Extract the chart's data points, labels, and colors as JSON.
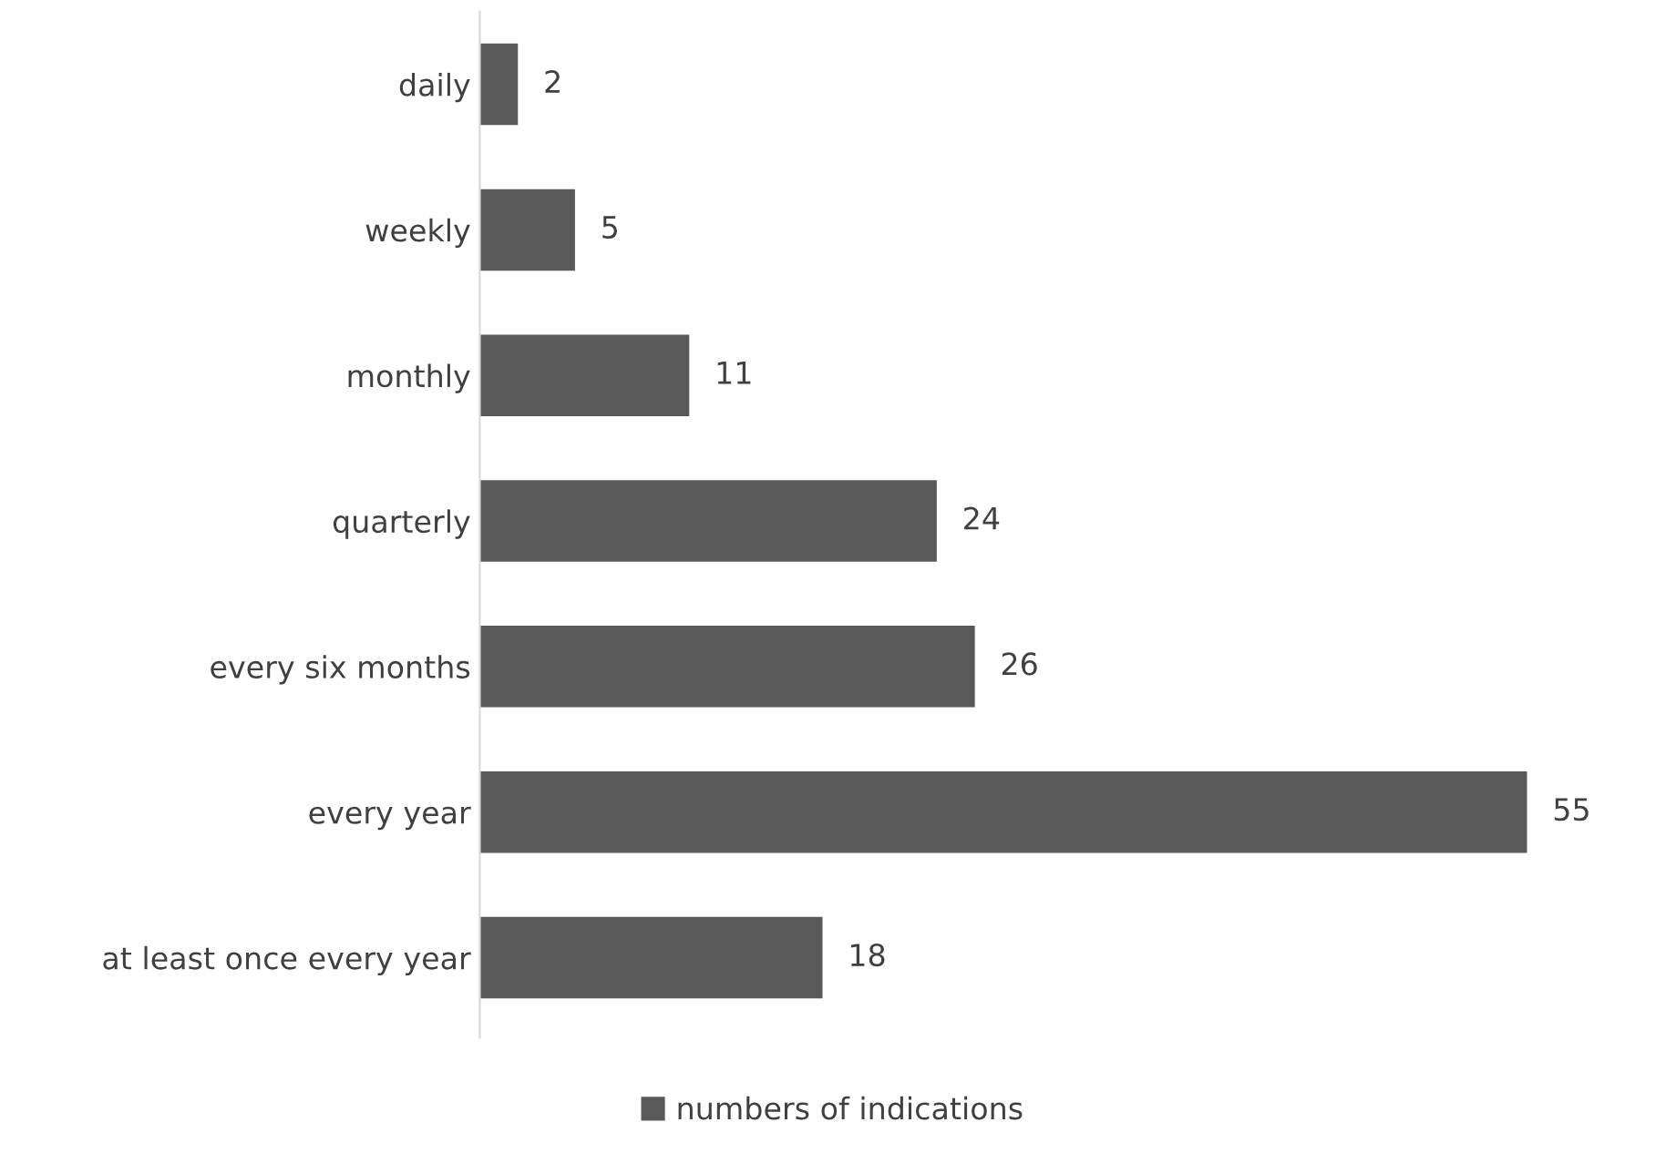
{
  "chart_data": {
    "type": "bar",
    "orientation": "horizontal",
    "categories": [
      "daily",
      "weekly",
      "monthly",
      "quarterly",
      "every six months",
      "every year",
      "at least once every year"
    ],
    "series": [
      {
        "name": "numbers of indications",
        "color": "#595959",
        "values": [
          2,
          5,
          11,
          24,
          26,
          55,
          18
        ]
      }
    ],
    "data_labels": true,
    "legend": "bottom",
    "grid": false,
    "tick_labels": "y"
  }
}
